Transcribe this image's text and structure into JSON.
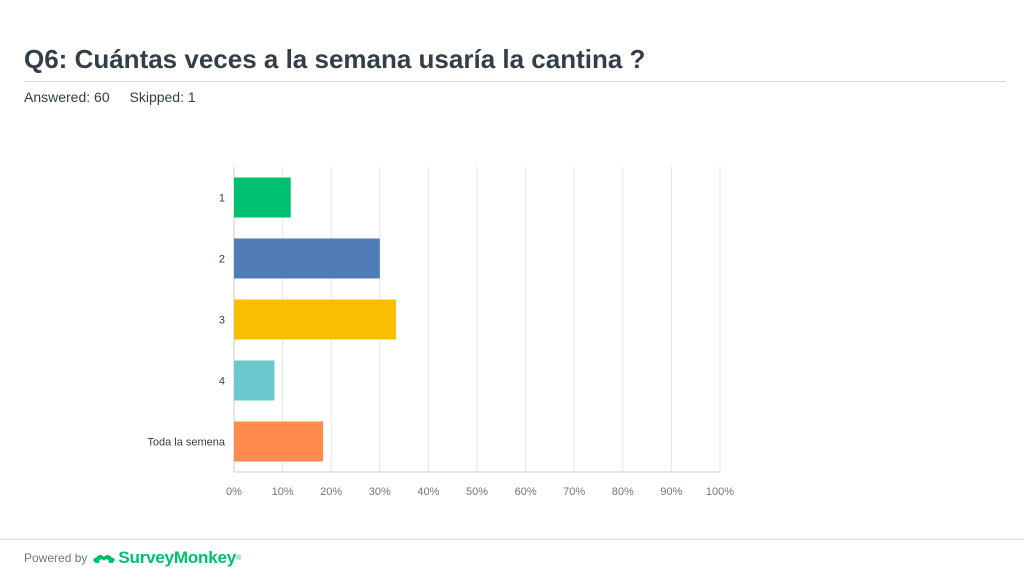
{
  "header": {
    "title": "Q6: Cuántas veces a la semana usaría la cantina ?",
    "answered": "Answered: 60",
    "skipped": "Skipped: 1"
  },
  "footer": {
    "powered_by": "Powered by",
    "brand": "SurveyMonkey",
    "logo_icon": "surveymonkey-logo-icon"
  },
  "chart_data": {
    "type": "bar",
    "orientation": "horizontal",
    "categories": [
      "1",
      "2",
      "3",
      "4",
      "Toda la semena"
    ],
    "values": [
      11.67,
      30.0,
      33.33,
      8.33,
      18.33
    ],
    "unit": "%",
    "colors": [
      "#00bf6f",
      "#507cb6",
      "#f9be00",
      "#6bc8cd",
      "#ff8b4f"
    ],
    "xlim": [
      0,
      100
    ],
    "ticks": [
      "0%",
      "10%",
      "20%",
      "30%",
      "40%",
      "50%",
      "60%",
      "70%",
      "80%",
      "90%",
      "100%"
    ],
    "grid": true,
    "legend": "none"
  }
}
